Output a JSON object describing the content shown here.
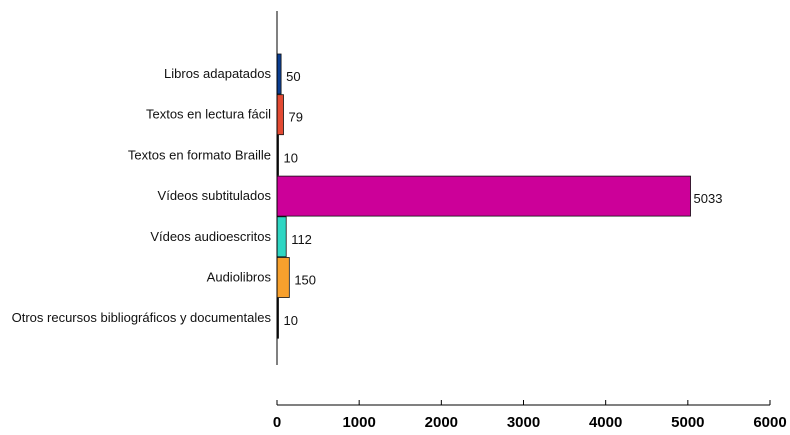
{
  "chart_data": {
    "type": "bar",
    "orientation": "horizontal",
    "categories": [
      "Libros adapatados",
      "Textos en lectura fácil",
      "Textos en formato Braille",
      "Vídeos subtitulados",
      "Vídeos audioescritos",
      "Audiolibros",
      "Otros recursos bibliográficos y documentales"
    ],
    "values": [
      50,
      79,
      10,
      5033,
      112,
      150,
      10
    ],
    "colors": [
      "#0a3d91",
      "#e34a33",
      "#111111",
      "#cc0099",
      "#2fd6c3",
      "#f7a02d",
      "#111111"
    ],
    "xlim": [
      0,
      6000
    ],
    "xticks": [
      "0",
      "1000",
      "2000",
      "3000",
      "4000",
      "5000",
      "6000"
    ],
    "title": "",
    "xlabel": "",
    "ylabel": "",
    "grid": false,
    "legend": "none"
  }
}
